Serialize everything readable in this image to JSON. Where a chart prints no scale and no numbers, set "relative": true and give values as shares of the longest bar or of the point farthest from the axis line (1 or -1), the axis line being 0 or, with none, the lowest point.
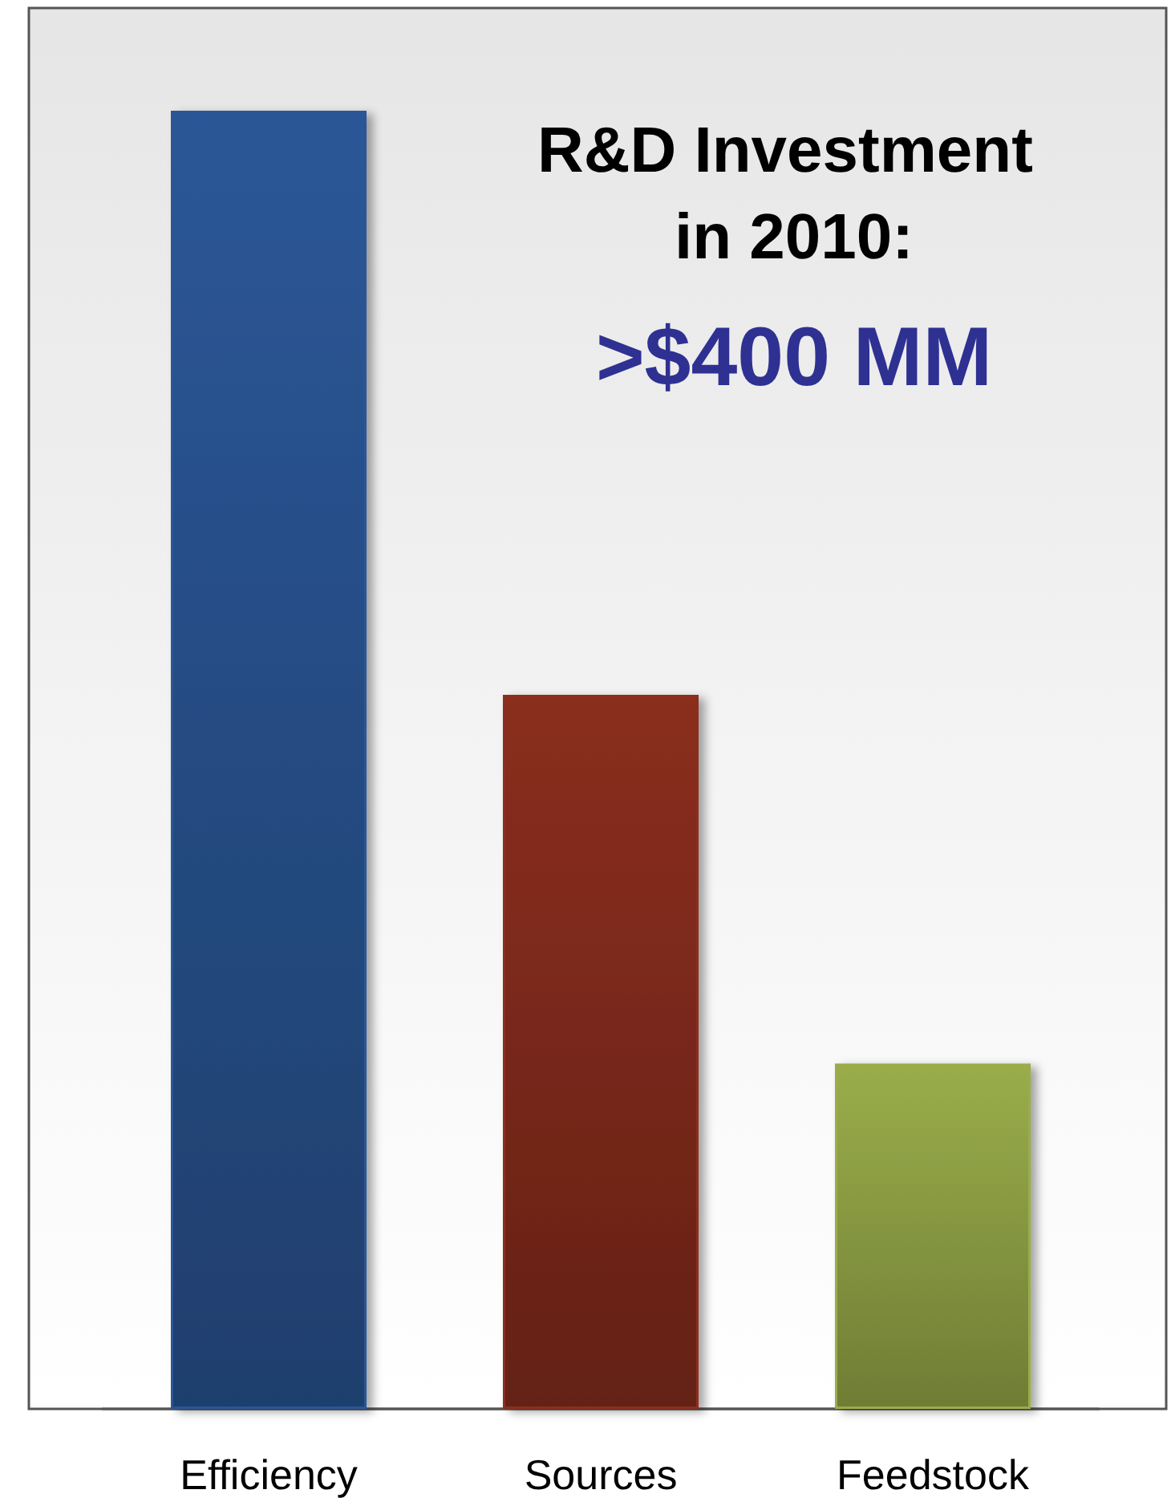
{
  "chart_data": {
    "type": "bar",
    "title": "R&D Investment in 2010:",
    "subtitle": ">$400 MM",
    "categories": [
      "Efficiency",
      "Sources",
      "Feedstock"
    ],
    "values": [
      1,
      0.55,
      0.266
    ],
    "colors": [
      "#2b5797",
      "#8b2e1e",
      "#9aad4a"
    ],
    "relative": true,
    "grid": false
  }
}
